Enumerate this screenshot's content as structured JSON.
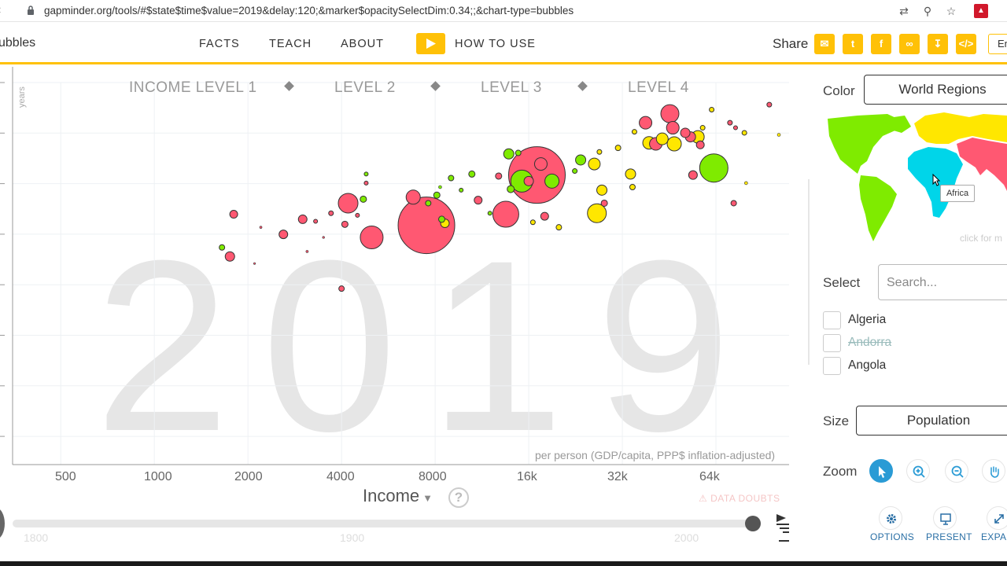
{
  "browser": {
    "url": "gapminder.org/tools/#$state$time$value=2019&delay:120;&marker$opacitySelectDim:0.34;;&chart-type=bubbles",
    "icons": [
      "translate-icon",
      "zoom-icon",
      "star-icon",
      "extension-icon"
    ]
  },
  "header": {
    "app_title": "ubbles",
    "nav": [
      "FACTS",
      "TEACH",
      "ABOUT"
    ],
    "how_to_use": "HOW TO USE",
    "share_label": "Share",
    "share_icons": [
      "mail-icon",
      "twitter-icon",
      "facebook-icon",
      "link-icon",
      "download-icon",
      "embed-icon"
    ],
    "language": "En",
    "accent_color": "#ffc107"
  },
  "chart_data": {
    "type": "scatter",
    "year": "2019",
    "xlabel": "Income",
    "x_description": "per person (GDP/capita, PPP$ inflation-adjusted)",
    "y_unit": "years",
    "x_scale": "log",
    "xlim": [
      350,
      110000
    ],
    "x_ticks": [
      "500",
      "1000",
      "2000",
      "4000",
      "8000",
      "16k",
      "32k",
      "64k"
    ],
    "x_tick_values": [
      500,
      1000,
      2000,
      4000,
      8000,
      16000,
      32000,
      64000
    ],
    "income_levels": [
      "INCOME LEVEL 1",
      "LEVEL 2",
      "LEVEL 3",
      "LEVEL 4"
    ],
    "grid": true,
    "colors": {
      "africa": "#00d5e9",
      "asia": "#ff5872",
      "americas": "#7feb00",
      "europe": "#ffe700"
    },
    "points": [
      {
        "x": 1800,
        "y": 72.9,
        "r": 5,
        "c": "asia"
      },
      {
        "x": 1650,
        "y": 69.6,
        "r": 3.5,
        "c": "americas"
      },
      {
        "x": 1750,
        "y": 68.7,
        "r": 6,
        "c": "asia"
      },
      {
        "x": 2600,
        "y": 70.9,
        "r": 5.5,
        "c": "asia"
      },
      {
        "x": 2200,
        "y": 71.6,
        "r": 1.5,
        "c": "asia"
      },
      {
        "x": 2100,
        "y": 68.0,
        "r": 1.2,
        "c": "asia"
      },
      {
        "x": 3000,
        "y": 72.4,
        "r": 5.5,
        "c": "asia"
      },
      {
        "x": 3100,
        "y": 69.2,
        "r": 1.5,
        "c": "asia"
      },
      {
        "x": 3300,
        "y": 72.2,
        "r": 2.5,
        "c": "asia"
      },
      {
        "x": 3500,
        "y": 70.6,
        "r": 1.3,
        "c": "asia"
      },
      {
        "x": 3700,
        "y": 73.0,
        "r": 3,
        "c": "asia"
      },
      {
        "x": 4000,
        "y": 65.5,
        "r": 3.5,
        "c": "asia"
      },
      {
        "x": 4100,
        "y": 71.9,
        "r": 4,
        "c": "asia"
      },
      {
        "x": 4200,
        "y": 74.0,
        "r": 12.5,
        "c": "asia"
      },
      {
        "x": 4800,
        "y": 76.9,
        "r": 2.5,
        "c": "americas"
      },
      {
        "x": 4800,
        "y": 76.0,
        "r": 2.5,
        "c": "asia"
      },
      {
        "x": 4700,
        "y": 74.4,
        "r": 4,
        "c": "americas"
      },
      {
        "x": 4500,
        "y": 72.8,
        "r": 2.5,
        "c": "asia"
      },
      {
        "x": 5000,
        "y": 70.6,
        "r": 14.5,
        "c": "asia"
      },
      {
        "x": 7500,
        "y": 71.8,
        "r": 36,
        "c": "asia"
      },
      {
        "x": 6800,
        "y": 74.6,
        "r": 9,
        "c": "asia"
      },
      {
        "x": 7600,
        "y": 74.0,
        "r": 3.5,
        "c": "americas"
      },
      {
        "x": 8100,
        "y": 74.8,
        "r": 4,
        "c": "americas"
      },
      {
        "x": 8400,
        "y": 72.4,
        "r": 4,
        "c": "americas"
      },
      {
        "x": 8600,
        "y": 72.0,
        "r": 5.5,
        "c": "europe"
      },
      {
        "x": 8300,
        "y": 75.6,
        "r": 2,
        "c": "americas"
      },
      {
        "x": 9000,
        "y": 76.5,
        "r": 3.5,
        "c": "americas"
      },
      {
        "x": 9700,
        "y": 75.3,
        "r": 2.5,
        "c": "americas"
      },
      {
        "x": 10500,
        "y": 76.9,
        "r": 4,
        "c": "americas"
      },
      {
        "x": 11000,
        "y": 74.3,
        "r": 5,
        "c": "asia"
      },
      {
        "x": 12800,
        "y": 76.7,
        "r": 4,
        "c": "asia"
      },
      {
        "x": 12000,
        "y": 73.0,
        "r": 2.5,
        "c": "americas"
      },
      {
        "x": 13500,
        "y": 72.9,
        "r": 16.5,
        "c": "asia"
      },
      {
        "x": 13800,
        "y": 78.9,
        "r": 6.5,
        "c": "americas"
      },
      {
        "x": 14800,
        "y": 79.0,
        "r": 3.5,
        "c": "americas"
      },
      {
        "x": 15200,
        "y": 76.2,
        "r": 14,
        "c": "americas"
      },
      {
        "x": 17000,
        "y": 76.8,
        "r": 36,
        "c": "asia"
      },
      {
        "x": 14000,
        "y": 75.4,
        "r": 4.5,
        "c": "americas"
      },
      {
        "x": 16000,
        "y": 76.2,
        "r": 6,
        "c": "asia"
      },
      {
        "x": 17500,
        "y": 77.9,
        "r": 8,
        "c": "asia"
      },
      {
        "x": 19000,
        "y": 76.2,
        "r": 9,
        "c": "americas"
      },
      {
        "x": 16500,
        "y": 72.1,
        "r": 3,
        "c": "europe"
      },
      {
        "x": 18000,
        "y": 72.7,
        "r": 5,
        "c": "asia"
      },
      {
        "x": 20000,
        "y": 71.6,
        "r": 3.5,
        "c": "europe"
      },
      {
        "x": 22500,
        "y": 77.2,
        "r": 3,
        "c": "americas"
      },
      {
        "x": 23500,
        "y": 78.3,
        "r": 6.5,
        "c": "americas"
      },
      {
        "x": 26000,
        "y": 77.9,
        "r": 7.5,
        "c": "europe"
      },
      {
        "x": 27000,
        "y": 79.1,
        "r": 3,
        "c": "europe"
      },
      {
        "x": 27500,
        "y": 75.3,
        "r": 6.5,
        "c": "europe"
      },
      {
        "x": 26500,
        "y": 73.0,
        "r": 12,
        "c": "europe"
      },
      {
        "x": 28000,
        "y": 74.0,
        "r": 4,
        "c": "asia"
      },
      {
        "x": 34000,
        "y": 76.9,
        "r": 6.5,
        "c": "europe"
      },
      {
        "x": 31000,
        "y": 79.5,
        "r": 3.5,
        "c": "europe"
      },
      {
        "x": 34500,
        "y": 75.6,
        "r": 3.5,
        "c": "europe"
      },
      {
        "x": 35000,
        "y": 81.1,
        "r": 3,
        "c": "europe"
      },
      {
        "x": 38000,
        "y": 82.0,
        "r": 8,
        "c": "asia"
      },
      {
        "x": 39000,
        "y": 80.0,
        "r": 8,
        "c": "europe"
      },
      {
        "x": 41000,
        "y": 79.9,
        "r": 8,
        "c": "asia"
      },
      {
        "x": 43000,
        "y": 80.4,
        "r": 7.5,
        "c": "europe"
      },
      {
        "x": 45500,
        "y": 82.9,
        "r": 11.5,
        "c": "asia"
      },
      {
        "x": 46500,
        "y": 81.5,
        "r": 8,
        "c": "asia"
      },
      {
        "x": 47000,
        "y": 79.9,
        "r": 9,
        "c": "europe"
      },
      {
        "x": 51000,
        "y": 81.0,
        "r": 6,
        "c": "asia"
      },
      {
        "x": 53000,
        "y": 80.6,
        "r": 6.5,
        "c": "asia"
      },
      {
        "x": 56000,
        "y": 80.6,
        "r": 8,
        "c": "europe"
      },
      {
        "x": 57000,
        "y": 79.8,
        "r": 5,
        "c": "asia"
      },
      {
        "x": 54000,
        "y": 76.8,
        "r": 5.5,
        "c": "asia"
      },
      {
        "x": 58000,
        "y": 81.5,
        "r": 3,
        "c": "europe"
      },
      {
        "x": 62000,
        "y": 83.3,
        "r": 3,
        "c": "europe"
      },
      {
        "x": 63000,
        "y": 77.5,
        "r": 18,
        "c": "americas"
      },
      {
        "x": 71000,
        "y": 82.0,
        "r": 3,
        "c": "asia"
      },
      {
        "x": 74000,
        "y": 81.5,
        "r": 2.5,
        "c": "asia"
      },
      {
        "x": 79000,
        "y": 81.0,
        "r": 3,
        "c": "europe"
      },
      {
        "x": 80000,
        "y": 76.0,
        "r": 2,
        "c": "europe"
      },
      {
        "x": 73000,
        "y": 74.0,
        "r": 3.5,
        "c": "asia"
      },
      {
        "x": 95000,
        "y": 83.8,
        "r": 3,
        "c": "asia"
      },
      {
        "x": 102000,
        "y": 80.8,
        "r": 2,
        "c": "europe"
      },
      {
        "x": 130000,
        "y": 79.8,
        "r": 2.5,
        "c": "asia"
      }
    ]
  },
  "timeline": {
    "labels": [
      "1800",
      "1900",
      "2000"
    ]
  },
  "panel": {
    "color_label": "Color",
    "color_value": "World Regions",
    "map_tooltip": "Africa",
    "map_hint": "click for m",
    "select_label": "Select",
    "search_placeholder": "Search...",
    "countries": [
      {
        "name": "Algeria",
        "disabled": false
      },
      {
        "name": "Andorra",
        "disabled": true
      },
      {
        "name": "Angola",
        "disabled": false
      }
    ],
    "size_label": "Size",
    "size_value": "Population",
    "zoom_label": "Zoom",
    "zoom_icons": [
      "pointer-icon",
      "zoom-in-icon",
      "zoom-out-icon",
      "pan-icon"
    ],
    "options": [
      "OPTIONS",
      "PRESENT",
      "EXPAN"
    ],
    "doubts_label": "DATA DOUBTS"
  }
}
